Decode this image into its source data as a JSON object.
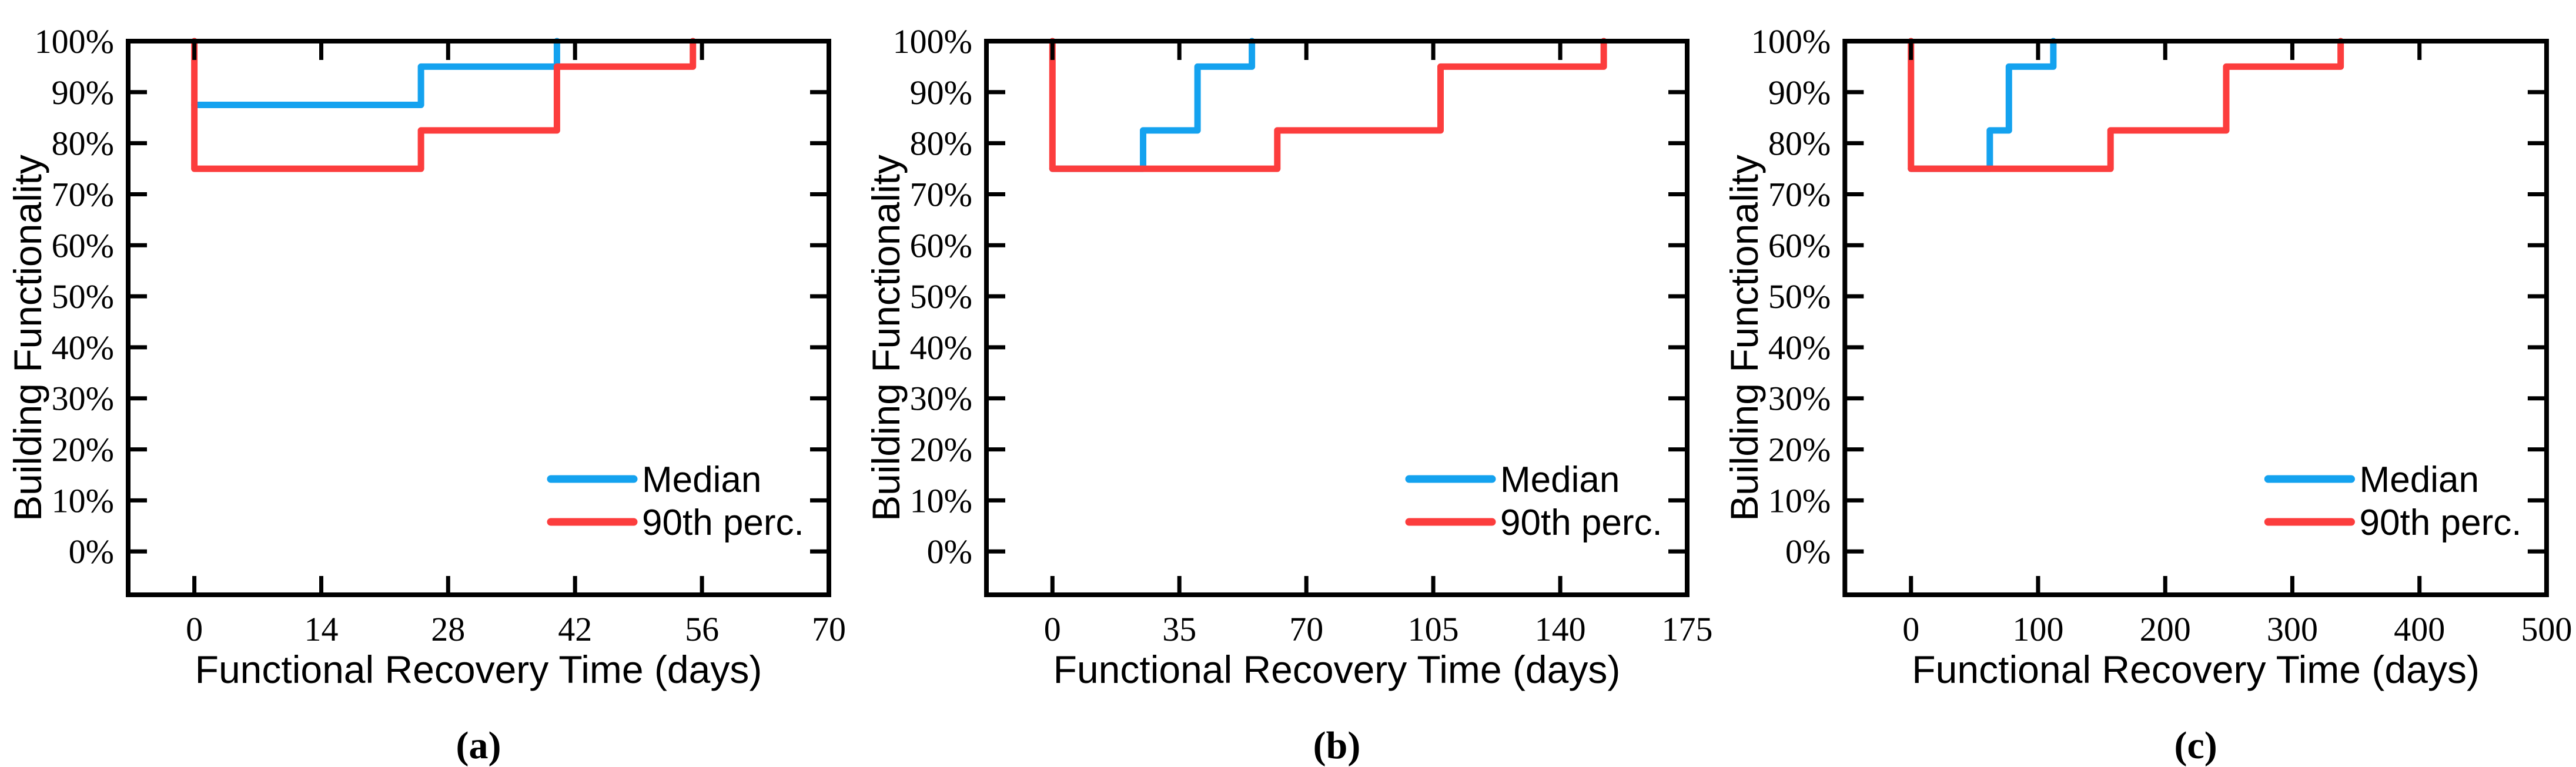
{
  "page": {
    "background": "#ffffff"
  },
  "colors": {
    "median": "#14A2EF",
    "p90": "#FC3D3D",
    "axis": "#000000",
    "text": "#000000"
  },
  "legend": {
    "labels": [
      "Median",
      "90th perc."
    ],
    "position": "lower right"
  },
  "chart_data": [
    {
      "type": "line",
      "subtype": "step",
      "caption": "(a)",
      "xlabel": "Functional Recovery Time (days)",
      "ylabel": "Building Functionality",
      "xticks": [
        0,
        14,
        28,
        42,
        56,
        70
      ],
      "xtick_labels": [
        "0",
        "14",
        "28",
        "42",
        "56",
        "70"
      ],
      "yticks": [
        0,
        10,
        20,
        30,
        40,
        50,
        60,
        70,
        80,
        90,
        100
      ],
      "ytick_labels": [
        "0%",
        "10%",
        "20%",
        "30%",
        "40%",
        "50%",
        "60%",
        "70%",
        "80%",
        "90%",
        "100%"
      ],
      "xlim": [
        -7.3,
        70
      ],
      "ylim": [
        -8.5,
        100
      ],
      "grid": false,
      "legend_position": "lower right",
      "series": [
        {
          "name": "Median",
          "color_key": "median",
          "points": [
            [
              0,
              87.5
            ],
            [
              25,
              87.5
            ],
            [
              25,
              95
            ],
            [
              40,
              95
            ],
            [
              40,
              100
            ]
          ]
        },
        {
          "name": "90th perc.",
          "color_key": "p90",
          "points": [
            [
              0,
              100
            ],
            [
              0,
              75
            ],
            [
              25,
              75
            ],
            [
              25,
              82.5
            ],
            [
              40,
              82.5
            ],
            [
              40,
              95
            ],
            [
              55,
              95
            ],
            [
              55,
              100
            ]
          ]
        }
      ]
    },
    {
      "type": "line",
      "subtype": "step",
      "caption": "(b)",
      "xlabel": "Functional Recovery Time (days)",
      "ylabel": "Building Functionality",
      "xticks": [
        0,
        35,
        70,
        105,
        140,
        175
      ],
      "xtick_labels": [
        "0",
        "35",
        "70",
        "105",
        "140",
        "175"
      ],
      "yticks": [
        0,
        10,
        20,
        30,
        40,
        50,
        60,
        70,
        80,
        90,
        100
      ],
      "ytick_labels": [
        "0%",
        "10%",
        "20%",
        "30%",
        "40%",
        "50%",
        "60%",
        "70%",
        "80%",
        "90%",
        "100%"
      ],
      "xlim": [
        -18.2,
        175
      ],
      "ylim": [
        -8.5,
        100
      ],
      "grid": false,
      "legend_position": "lower right",
      "series": [
        {
          "name": "Median",
          "color_key": "median",
          "points": [
            [
              0,
              75
            ],
            [
              25,
              75
            ],
            [
              25,
              82.5
            ],
            [
              40,
              82.5
            ],
            [
              40,
              95
            ],
            [
              55,
              95
            ],
            [
              55,
              100
            ]
          ]
        },
        {
          "name": "90th perc.",
          "color_key": "p90",
          "points": [
            [
              0,
              100
            ],
            [
              0,
              75
            ],
            [
              62,
              75
            ],
            [
              62,
              82.5
            ],
            [
              107,
              82.5
            ],
            [
              107,
              95
            ],
            [
              152,
              95
            ],
            [
              152,
              100
            ]
          ]
        }
      ]
    },
    {
      "type": "line",
      "subtype": "step",
      "caption": "(c)",
      "xlabel": "Functional Recovery Time (days)",
      "ylabel": "Building Functionality",
      "xticks": [
        0,
        100,
        200,
        300,
        400,
        500
      ],
      "xtick_labels": [
        "0",
        "100",
        "200",
        "300",
        "400",
        "500"
      ],
      "yticks": [
        0,
        10,
        20,
        30,
        40,
        50,
        60,
        70,
        80,
        90,
        100
      ],
      "ytick_labels": [
        "0%",
        "10%",
        "20%",
        "30%",
        "40%",
        "50%",
        "60%",
        "70%",
        "80%",
        "90%",
        "100%"
      ],
      "xlim": [
        -52,
        500
      ],
      "ylim": [
        -8.5,
        100
      ],
      "grid": false,
      "legend_position": "lower right",
      "series": [
        {
          "name": "Median",
          "color_key": "median",
          "points": [
            [
              0,
              75
            ],
            [
              62,
              75
            ],
            [
              62,
              82.5
            ],
            [
              77,
              82.5
            ],
            [
              77,
              95
            ],
            [
              112,
              95
            ],
            [
              112,
              100
            ]
          ]
        },
        {
          "name": "90th perc.",
          "color_key": "p90",
          "points": [
            [
              0,
              100
            ],
            [
              0,
              75
            ],
            [
              157,
              75
            ],
            [
              157,
              82.5
            ],
            [
              248,
              82.5
            ],
            [
              248,
              95
            ],
            [
              338,
              95
            ],
            [
              338,
              100
            ]
          ]
        }
      ]
    }
  ]
}
